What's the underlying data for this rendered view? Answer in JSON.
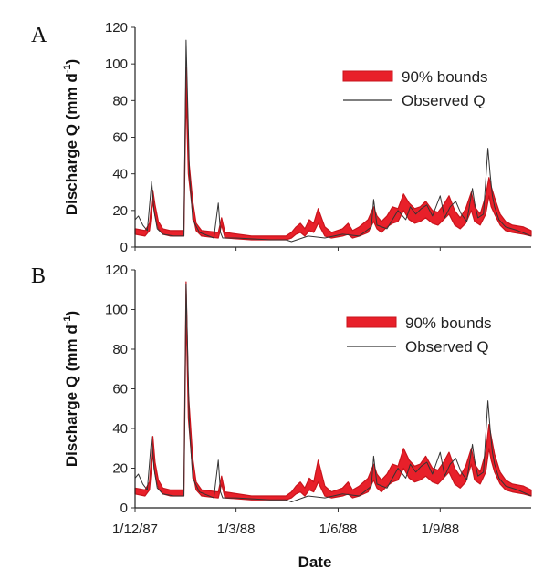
{
  "chart_data": [
    {
      "type": "line",
      "panel_label": "A",
      "ylabel": "Discharge Q (mm d",
      "ylabel_sup": "-1",
      "ylabel_close": ")",
      "ylim": [
        0,
        120
      ],
      "yticks": [
        "0",
        "20",
        "40",
        "60",
        "80",
        "100",
        "120"
      ],
      "x_range": [
        "1987-12-01",
        "1988-11-22"
      ],
      "legend_position": "top-right",
      "series": [
        {
          "name": "90% bounds",
          "kind": "band",
          "color": "#e8202a",
          "x": [
            "1987-12-01",
            "1987-12-10",
            "1987-12-14",
            "1987-12-17",
            "1987-12-19",
            "1987-12-22",
            "1987-12-26",
            "1988-01-02",
            "1988-01-14",
            "1988-01-16",
            "1988-01-18",
            "1988-01-22",
            "1988-01-25",
            "1988-01-30",
            "1988-02-14",
            "1988-02-17",
            "1988-02-20",
            "1988-03-15",
            "1988-04-15",
            "1988-04-20",
            "1988-04-24",
            "1988-04-28",
            "1988-05-02",
            "1988-05-06",
            "1988-05-10",
            "1988-05-14",
            "1988-05-20",
            "1988-05-26",
            "1988-06-05",
            "1988-06-10",
            "1988-06-14",
            "1988-06-20",
            "1988-06-28",
            "1988-07-03",
            "1988-07-06",
            "1988-07-10",
            "1988-07-15",
            "1988-07-20",
            "1988-07-25",
            "1988-07-30",
            "1988-08-04",
            "1988-08-09",
            "1988-08-14",
            "1988-08-19",
            "1988-08-25",
            "1988-08-30",
            "1988-09-04",
            "1988-09-09",
            "1988-09-14",
            "1988-09-19",
            "1988-09-24",
            "1988-09-29",
            "1988-10-02",
            "1988-10-07",
            "1988-10-12",
            "1988-10-15",
            "1988-10-17",
            "1988-10-20",
            "1988-10-25",
            "1988-10-30",
            "1988-11-05",
            "1988-11-15",
            "1988-11-22"
          ],
          "lower": [
            7,
            6,
            9,
            25,
            17,
            10,
            7,
            6,
            6,
            85,
            40,
            18,
            9,
            6,
            5,
            12,
            5,
            4,
            4,
            5,
            7,
            8,
            6,
            9,
            8,
            13,
            6,
            5,
            6,
            7,
            5,
            6,
            8,
            14,
            10,
            8,
            11,
            13,
            14,
            20,
            15,
            13,
            14,
            16,
            13,
            12,
            15,
            18,
            12,
            10,
            13,
            20,
            14,
            12,
            18,
            28,
            22,
            18,
            12,
            9,
            8,
            7,
            6
          ],
          "upper": [
            10,
            9,
            13,
            31,
            23,
            14,
            10,
            9,
            9,
            98,
            50,
            25,
            13,
            9,
            8,
            16,
            8,
            6,
            6,
            8,
            11,
            13,
            10,
            15,
            13,
            21,
            11,
            8,
            10,
            13,
            9,
            11,
            15,
            22,
            17,
            14,
            17,
            22,
            21,
            29,
            24,
            21,
            22,
            25,
            20,
            19,
            23,
            28,
            20,
            16,
            21,
            30,
            22,
            18,
            28,
            38,
            33,
            27,
            18,
            14,
            12,
            11,
            9
          ]
        },
        {
          "name": "Observed Q",
          "kind": "line",
          "color": "#333333",
          "x": [
            "1987-12-01",
            "1987-12-04",
            "1987-12-08",
            "1987-12-12",
            "1987-12-16",
            "1987-12-18",
            "1987-12-21",
            "1987-12-26",
            "1988-01-05",
            "1988-01-14",
            "1988-01-16",
            "1988-01-19",
            "1988-01-22",
            "1988-01-28",
            "1988-02-10",
            "1988-02-14",
            "1988-02-16",
            "1988-02-18",
            "1988-03-01",
            "1988-04-01",
            "1988-04-15",
            "1988-04-20",
            "1988-05-05",
            "1988-05-20",
            "1988-06-05",
            "1988-06-20",
            "1988-07-01",
            "1988-07-03",
            "1988-07-06",
            "1988-07-15",
            "1988-07-25",
            "1988-08-01",
            "1988-08-05",
            "1988-08-10",
            "1988-08-15",
            "1988-08-20",
            "1988-08-25",
            "1988-09-01",
            "1988-09-05",
            "1988-09-10",
            "1988-09-15",
            "1988-09-20",
            "1988-09-25",
            "1988-09-30",
            "1988-10-02",
            "1988-10-05",
            "1988-10-10",
            "1988-10-14",
            "1988-10-16",
            "1988-10-18",
            "1988-10-20",
            "1988-10-24",
            "1988-10-30",
            "1988-11-10",
            "1988-11-22"
          ],
          "y": [
            15,
            17,
            12,
            9,
            36,
            20,
            10,
            7,
            6,
            6,
            113,
            40,
            15,
            8,
            5,
            24,
            8,
            5,
            5,
            4,
            4,
            3,
            6,
            5,
            7,
            6,
            11,
            26,
            12,
            10,
            20,
            15,
            22,
            18,
            21,
            23,
            17,
            28,
            16,
            22,
            25,
            18,
            14,
            32,
            24,
            16,
            18,
            54,
            40,
            28,
            22,
            15,
            11,
            9,
            6
          ]
        }
      ]
    },
    {
      "type": "line",
      "panel_label": "B",
      "xlabel": "Date",
      "ylabel": "Discharge Q (mm d",
      "ylabel_sup": "-1",
      "ylabel_close": ")",
      "ylim": [
        0,
        120
      ],
      "yticks": [
        "0",
        "20",
        "40",
        "60",
        "80",
        "100",
        "120"
      ],
      "x_range": [
        "1987-12-01",
        "1988-11-22"
      ],
      "xticks": [
        "1/12/87",
        "1/3/88",
        "1/6/88",
        "1/9/88"
      ],
      "xtick_dates": [
        "1987-12-01",
        "1988-03-01",
        "1988-06-01",
        "1988-09-01"
      ],
      "legend_position": "top-right",
      "series": [
        {
          "name": "90% bounds",
          "kind": "band",
          "color": "#e8202a",
          "x": [
            "1987-12-01",
            "1987-12-10",
            "1987-12-14",
            "1987-12-17",
            "1987-12-19",
            "1987-12-22",
            "1987-12-26",
            "1988-01-02",
            "1988-01-14",
            "1988-01-16",
            "1988-01-18",
            "1988-01-22",
            "1988-01-25",
            "1988-01-30",
            "1988-02-14",
            "1988-02-17",
            "1988-02-20",
            "1988-03-15",
            "1988-04-15",
            "1988-04-20",
            "1988-04-24",
            "1988-04-28",
            "1988-05-02",
            "1988-05-06",
            "1988-05-10",
            "1988-05-14",
            "1988-05-20",
            "1988-05-26",
            "1988-06-05",
            "1988-06-10",
            "1988-06-14",
            "1988-06-20",
            "1988-06-28",
            "1988-07-03",
            "1988-07-06",
            "1988-07-10",
            "1988-07-15",
            "1988-07-20",
            "1988-07-25",
            "1988-07-30",
            "1988-08-04",
            "1988-08-09",
            "1988-08-14",
            "1988-08-19",
            "1988-08-25",
            "1988-08-30",
            "1988-09-04",
            "1988-09-09",
            "1988-09-14",
            "1988-09-19",
            "1988-09-24",
            "1988-09-29",
            "1988-10-02",
            "1988-10-07",
            "1988-10-12",
            "1988-10-15",
            "1988-10-17",
            "1988-10-20",
            "1988-10-25",
            "1988-10-30",
            "1988-11-05",
            "1988-11-15",
            "1988-11-22"
          ],
          "lower": [
            7,
            6,
            9,
            28,
            17,
            10,
            7,
            6,
            6,
            100,
            45,
            18,
            9,
            6,
            5,
            12,
            5,
            4,
            4,
            5,
            7,
            8,
            6,
            9,
            8,
            13,
            6,
            5,
            6,
            7,
            5,
            6,
            8,
            14,
            10,
            8,
            11,
            13,
            14,
            20,
            15,
            13,
            14,
            16,
            13,
            12,
            15,
            18,
            12,
            10,
            13,
            22,
            14,
            12,
            18,
            30,
            24,
            18,
            12,
            9,
            8,
            7,
            6
          ],
          "upper": [
            10,
            9,
            13,
            36,
            23,
            14,
            10,
            9,
            9,
            114,
            58,
            25,
            13,
            9,
            8,
            16,
            8,
            6,
            6,
            8,
            11,
            13,
            10,
            15,
            13,
            24,
            11,
            8,
            10,
            13,
            9,
            11,
            15,
            22,
            17,
            14,
            17,
            22,
            21,
            30,
            24,
            21,
            22,
            26,
            20,
            19,
            23,
            28,
            20,
            16,
            21,
            30,
            22,
            18,
            28,
            42,
            36,
            27,
            18,
            14,
            12,
            11,
            9
          ]
        },
        {
          "name": "Observed Q",
          "kind": "line",
          "color": "#333333",
          "x": [
            "1987-12-01",
            "1987-12-04",
            "1987-12-08",
            "1987-12-12",
            "1987-12-16",
            "1987-12-18",
            "1987-12-21",
            "1987-12-26",
            "1988-01-05",
            "1988-01-14",
            "1988-01-16",
            "1988-01-19",
            "1988-01-22",
            "1988-01-28",
            "1988-02-10",
            "1988-02-14",
            "1988-02-16",
            "1988-02-18",
            "1988-03-01",
            "1988-04-01",
            "1988-04-15",
            "1988-04-20",
            "1988-05-05",
            "1988-05-20",
            "1988-06-05",
            "1988-06-20",
            "1988-07-01",
            "1988-07-03",
            "1988-07-06",
            "1988-07-15",
            "1988-07-25",
            "1988-08-01",
            "1988-08-05",
            "1988-08-10",
            "1988-08-15",
            "1988-08-20",
            "1988-08-25",
            "1988-09-01",
            "1988-09-05",
            "1988-09-10",
            "1988-09-15",
            "1988-09-20",
            "1988-09-25",
            "1988-09-30",
            "1988-10-02",
            "1988-10-05",
            "1988-10-10",
            "1988-10-14",
            "1988-10-16",
            "1988-10-18",
            "1988-10-20",
            "1988-10-24",
            "1988-10-30",
            "1988-11-10",
            "1988-11-22"
          ],
          "y": [
            15,
            17,
            12,
            9,
            36,
            20,
            10,
            7,
            6,
            6,
            113,
            40,
            15,
            8,
            5,
            24,
            8,
            5,
            5,
            4,
            4,
            3,
            6,
            5,
            7,
            6,
            11,
            26,
            12,
            10,
            20,
            15,
            22,
            18,
            21,
            23,
            17,
            28,
            16,
            22,
            25,
            18,
            14,
            32,
            24,
            16,
            18,
            54,
            40,
            28,
            22,
            15,
            11,
            9,
            6
          ]
        }
      ]
    }
  ]
}
